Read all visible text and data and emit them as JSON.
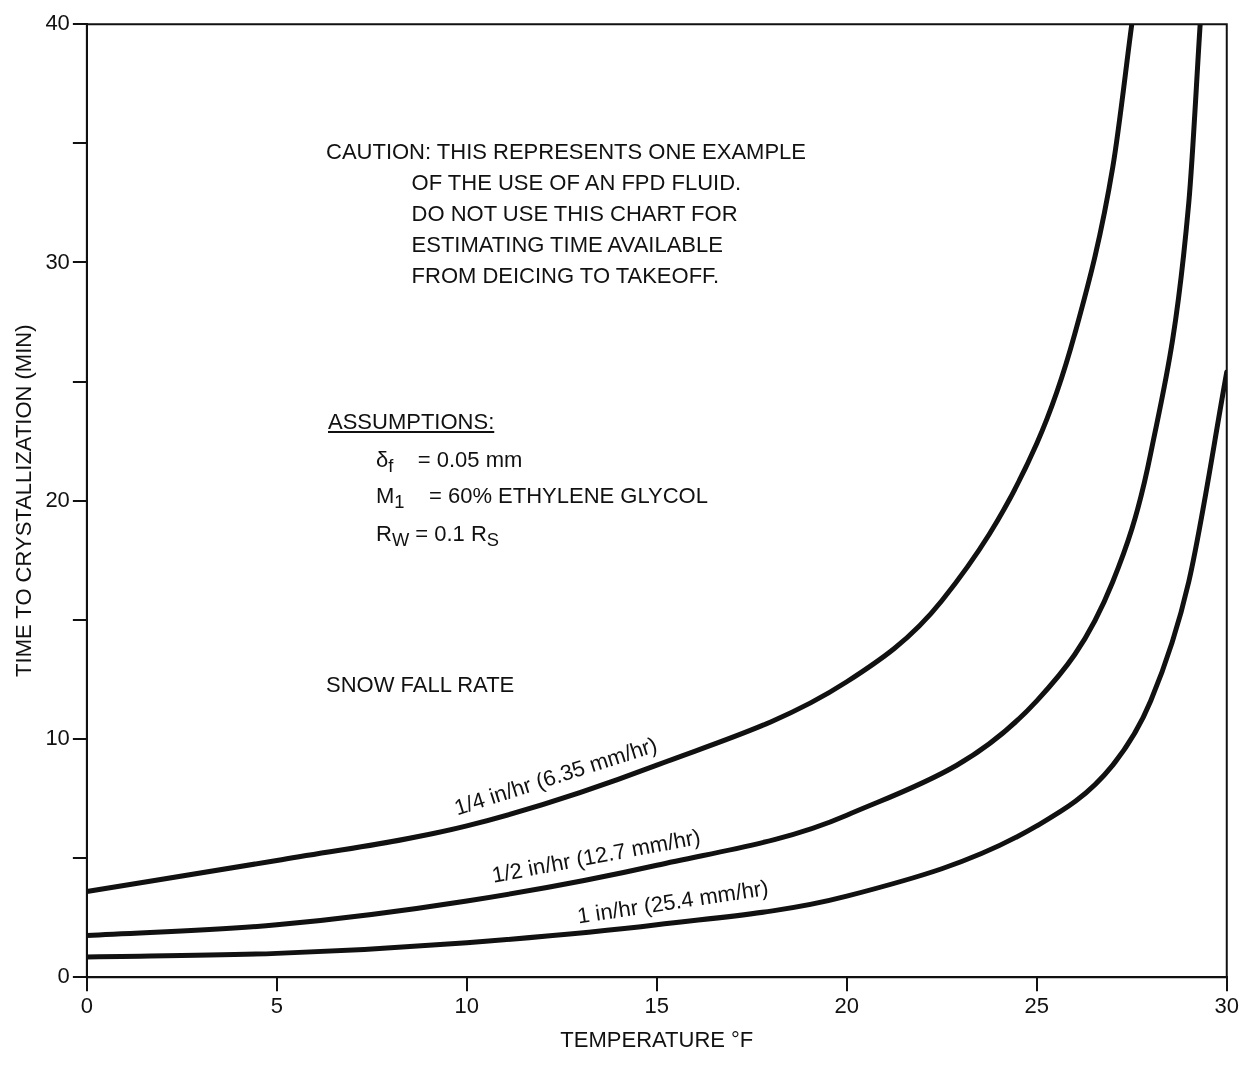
{
  "chart_data": {
    "type": "line",
    "xlabel": "TEMPERATURE °F",
    "ylabel": "TIME TO CRYSTALLIZATION (MIN)",
    "legend_title": "SNOW FALL RATE",
    "xlim": [
      0,
      30
    ],
    "xticks": [
      0,
      5,
      10,
      15,
      20,
      25,
      30
    ],
    "ylim": [
      0,
      40
    ],
    "yticks": [
      0,
      {
        "value": 5,
        "label": null
      },
      10,
      {
        "value": 15,
        "label": null
      },
      20,
      {
        "value": 25,
        "label": null
      },
      30,
      {
        "value": 35,
        "label": null
      },
      40
    ],
    "grid": false,
    "legend": false,
    "marker": "none",
    "line_style": "solid",
    "series": [
      {
        "name": "1/4 in/hr (6.35 mm/hr)",
        "color": "#111111",
        "x": [
          0,
          5,
          10,
          15,
          20,
          22.5,
          25,
          26,
          27,
          27.5
        ],
        "values": [
          3.6,
          4.9,
          6.35,
          8.9,
          12.4,
          15.8,
          22.4,
          27,
          34,
          40
        ]
      },
      {
        "name": "1/2 in/hr (12.7 mm/hr)",
        "color": "#111111",
        "x": [
          0,
          5,
          10,
          15,
          20,
          25,
          27,
          28,
          29,
          29.3
        ],
        "values": [
          1.75,
          2.2,
          3.2,
          4.7,
          6.8,
          11.6,
          16.6,
          22,
          32.5,
          40
        ]
      },
      {
        "name": "1 in/hr (25.4 mm/hr)",
        "color": "#111111",
        "x": [
          0,
          5,
          10,
          15,
          20,
          25,
          27,
          28,
          29,
          30
        ],
        "values": [
          0.85,
          1.0,
          1.45,
          2.2,
          3.4,
          6.35,
          8.9,
          11.6,
          16.6,
          25.4
        ]
      }
    ],
    "annotations": [
      "CAUTION: THIS REPRESENTS ONE EXAMPLE\n              OF THE USE OF AN FPD FLUID.\n              DO NOT USE THIS CHART FOR\n              ESTIMATING TIME AVAILABLE\n              FROM DEICING TO TAKEOFF.",
      "ASSUMPTIONS:",
      "δ$_{f}$    = 0.05 mm",
      "M$_{1}$    = 60% ETHYLENE GLYCOL",
      "R$_{W}$ = 0.1 R$_{S}$"
    ]
  }
}
